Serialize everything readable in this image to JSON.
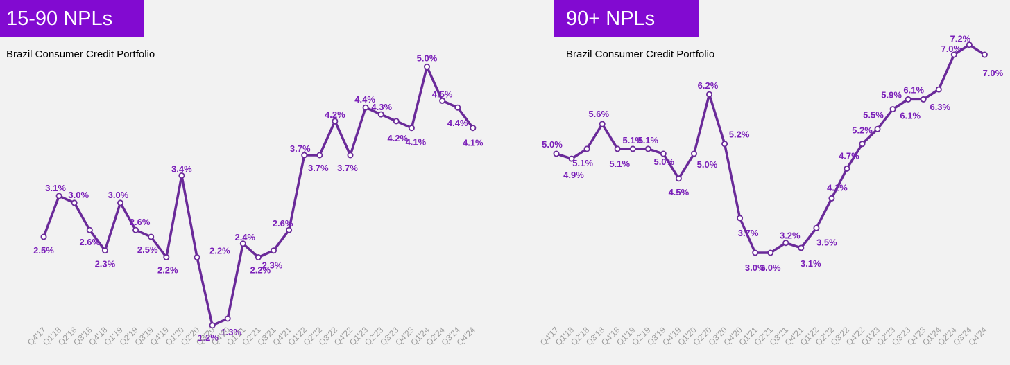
{
  "colors": {
    "accent": "#820ad1",
    "line": "#6a2a99",
    "label": "#7a1fb8",
    "tick": "#9a9a9a",
    "background": "#f2f2f2"
  },
  "chart_data": [
    {
      "type": "line",
      "title": "15-90 NPLs",
      "subtitle": "Brazil Consumer Credit Portfolio",
      "categories": [
        "Q4'17",
        "Q1'18",
        "Q2'18",
        "Q3'18",
        "Q4'18",
        "Q1'19",
        "Q2'19",
        "Q3'19",
        "Q4'19",
        "Q1'20",
        "Q2'20",
        "Q3'20",
        "Q4'20",
        "Q1'21",
        "Q2'21",
        "Q3'21",
        "Q4'21",
        "Q1'22",
        "Q2'22",
        "Q3'22",
        "Q4'22",
        "Q1'23",
        "Q2'23",
        "Q3'23",
        "Q4'23",
        "Q1'24",
        "Q2'24",
        "Q3'24",
        "Q4'24"
      ],
      "values": [
        2.5,
        3.1,
        3.0,
        2.6,
        2.3,
        3.0,
        2.6,
        2.5,
        2.2,
        3.4,
        2.2,
        1.2,
        1.3,
        2.4,
        2.2,
        2.3,
        2.6,
        3.7,
        3.7,
        4.2,
        3.7,
        4.4,
        4.3,
        4.2,
        4.1,
        5.0,
        4.5,
        4.4,
        4.1
      ],
      "labels": [
        "2.5%",
        "3.1%",
        "3.0%",
        "2.6%",
        "2.3%",
        "3.0%",
        "2.6%",
        "2.5%",
        "2.2%",
        "3.4%",
        "2.2%",
        "1.2%",
        "1.3%",
        "2.4%",
        "2.2%",
        "2.3%",
        "2.6%",
        "3.7%",
        "3.7%",
        "4.2%",
        "3.7%",
        "4.4%",
        "4.3%",
        "4.2%",
        "4.1%",
        "5.0%",
        "4.5%",
        "4.4%",
        "4.1%"
      ],
      "grid": false,
      "legend": "none"
    },
    {
      "type": "line",
      "title": "90+ NPLs",
      "subtitle": "Brazil Consumer Credit Portfolio",
      "categories": [
        "Q4'17",
        "Q1'18",
        "Q2'18",
        "Q3'18",
        "Q4'18",
        "Q1'19",
        "Q2'19",
        "Q3'19",
        "Q4'19",
        "Q1'20",
        "Q2'20",
        "Q3'20",
        "Q4'20",
        "Q1'21",
        "Q2'21",
        "Q3'21",
        "Q4'21",
        "Q1'22",
        "Q2'22",
        "Q3'22",
        "Q4'22",
        "Q1'23",
        "Q2'23",
        "Q3'23",
        "Q4'23",
        "Q1'24",
        "Q2'24",
        "Q3'24",
        "Q4'24"
      ],
      "values": [
        5.0,
        4.9,
        5.1,
        5.6,
        5.1,
        5.1,
        5.1,
        5.0,
        4.5,
        5.0,
        6.2,
        5.2,
        3.7,
        3.0,
        3.0,
        3.2,
        3.1,
        3.5,
        4.1,
        4.7,
        5.2,
        5.5,
        5.9,
        6.1,
        6.1,
        6.3,
        7.0,
        7.2,
        7.0
      ],
      "labels": [
        "5.0%",
        "4.9%",
        "5.1%",
        "5.6%",
        "5.1%",
        "5.1%",
        "5.1%",
        "5.0%",
        "4.5%",
        "5.0%",
        "6.2%",
        "5.2%",
        "3.7%",
        "3.0%",
        "3.0%",
        "3.2%",
        "3.1%",
        "3.5%",
        "4.1%",
        "4.7%",
        "5.2%",
        "5.5%",
        "5.9%",
        "6.1%",
        "6.1%",
        "6.3%",
        "7.0%",
        "7.2%",
        "7.0%"
      ],
      "grid": false,
      "legend": "none"
    }
  ]
}
